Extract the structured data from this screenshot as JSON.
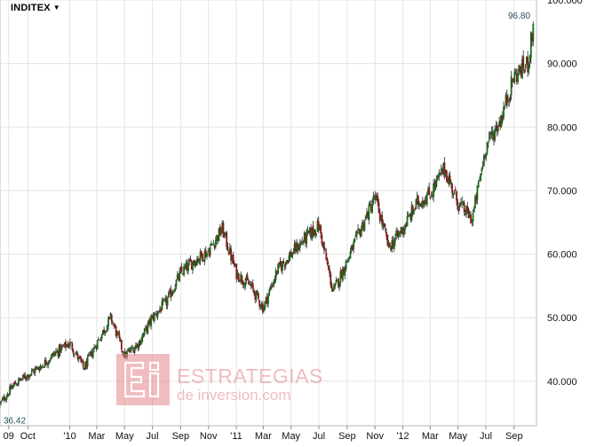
{
  "header": {
    "ticker": "INDITEX",
    "caret": "▼"
  },
  "watermark": {
    "line1": "ESTRATEGIAS",
    "line2": "de inversion.com",
    "logo_letters": "Ei"
  },
  "chart_data": {
    "type": "candlestick",
    "title": "",
    "xlabel": "",
    "ylabel": "",
    "y_ticks": [
      "40.000",
      "50.000",
      "60.000",
      "70.000",
      "80.000",
      "90.000",
      "100.000"
    ],
    "x_ticks": [
      "09",
      "Oct",
      "'10",
      "Mar",
      "May",
      "Jul",
      "Sep",
      "Nov",
      "'11",
      "Mar",
      "May",
      "Jul",
      "Sep",
      "Nov",
      "'12",
      "Mar",
      "May",
      "Jul",
      "Sep"
    ],
    "ylim": [
      33,
      100
    ],
    "first_value_label": "36.42",
    "last_value_label": "96.80",
    "grid": true,
    "up_color": "#1a6b1a",
    "down_color": "#8b1a1a",
    "series": [
      {
        "x": "2009-08",
        "y": 36.4
      },
      {
        "x": "2009-09",
        "y": 39.5
      },
      {
        "x": "2009-10",
        "y": 41.0
      },
      {
        "x": "2009-11",
        "y": 42.5
      },
      {
        "x": "2009-12",
        "y": 44.5
      },
      {
        "x": "2010-01",
        "y": 46.0
      },
      {
        "x": "2010-02",
        "y": 42.0
      },
      {
        "x": "2010-03",
        "y": 46.0
      },
      {
        "x": "2010-04",
        "y": 50.0
      },
      {
        "x": "2010-05",
        "y": 44.0
      },
      {
        "x": "2010-06",
        "y": 46.0
      },
      {
        "x": "2010-07",
        "y": 50.0
      },
      {
        "x": "2010-08",
        "y": 52.5
      },
      {
        "x": "2010-09",
        "y": 57.0
      },
      {
        "x": "2010-10",
        "y": 59.0
      },
      {
        "x": "2010-11",
        "y": 60.5
      },
      {
        "x": "2010-12",
        "y": 64.0
      },
      {
        "x": "2011-01",
        "y": 57.0
      },
      {
        "x": "2011-02",
        "y": 55.0
      },
      {
        "x": "2011-03",
        "y": 51.5
      },
      {
        "x": "2011-04",
        "y": 57.5
      },
      {
        "x": "2011-05",
        "y": 60.0
      },
      {
        "x": "2011-06",
        "y": 62.5
      },
      {
        "x": "2011-07",
        "y": 64.5
      },
      {
        "x": "2011-08",
        "y": 54.0
      },
      {
        "x": "2011-09",
        "y": 59.0
      },
      {
        "x": "2011-10",
        "y": 64.0
      },
      {
        "x": "2011-11",
        "y": 69.0
      },
      {
        "x": "2011-12",
        "y": 61.0
      },
      {
        "x": "2012-01",
        "y": 64.0
      },
      {
        "x": "2012-02",
        "y": 68.0
      },
      {
        "x": "2012-03",
        "y": 69.5
      },
      {
        "x": "2012-04",
        "y": 73.5
      },
      {
        "x": "2012-05",
        "y": 68.0
      },
      {
        "x": "2012-06",
        "y": 65.5
      },
      {
        "x": "2012-07",
        "y": 77.0
      },
      {
        "x": "2012-08",
        "y": 81.0
      },
      {
        "x": "2012-09",
        "y": 88.0
      },
      {
        "x": "2012-10",
        "y": 90.0
      },
      {
        "x": "2012-10-15",
        "y": 96.8
      }
    ]
  }
}
